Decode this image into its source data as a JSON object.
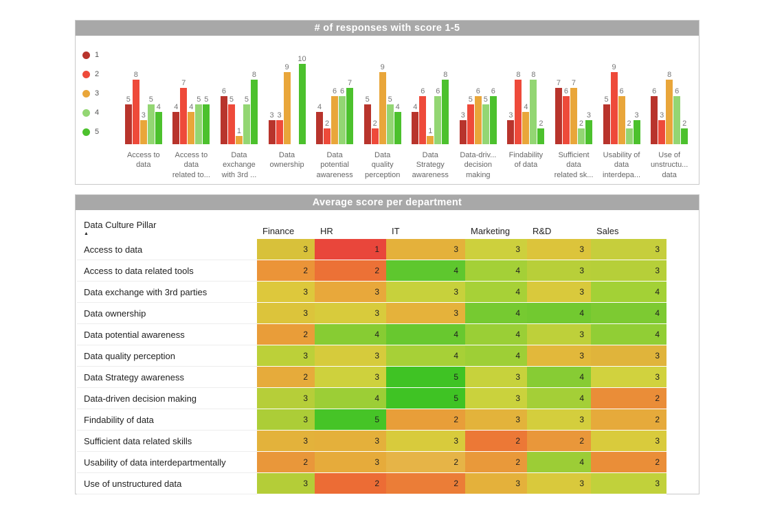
{
  "panels": {
    "heatmap_ui": {
      "sort_indicator": "▲"
    }
  },
  "theme": {
    "title_bar_bg": "#a8a8a8",
    "title_text": "#ffffff",
    "panel_border": "#c9c9c9"
  },
  "chart_data": [
    {
      "type": "bar",
      "title": "# of responses with score 1-5",
      "legend_position": "left",
      "data_labels": true,
      "ylim": [
        0,
        10
      ],
      "xlabel": "",
      "ylabel": "",
      "categories": [
        "Access to data",
        "Access to data related to...",
        "Data exchange with 3rd ...",
        "Data ownership",
        "Data potential awareness",
        "Data quality perception",
        "Data Strategy awareness",
        "Data-driv... decision making",
        "Findability of data",
        "Sufficient data related sk...",
        "Usability of data interdepa...",
        "Use of unstructu... data"
      ],
      "categories_display": [
        "Access to\ndata",
        "Access to\ndata\nrelated to...",
        "Data\nexchange\nwith 3rd ...",
        "Data\nownership",
        "Data\npotential\nawareness",
        "Data\nquality\nperception",
        "Data\nStrategy\nawareness",
        "Data-driv...\ndecision\nmaking",
        "Findability\nof data",
        "Sufficient\ndata\nrelated sk...",
        "Usability of\ndata\ninterdepa...",
        "Use of\nunstructu...\ndata"
      ],
      "series": [
        {
          "name": "1",
          "color": "#b8342c",
          "values": [
            5,
            4,
            6,
            3,
            4,
            5,
            4,
            3,
            3,
            7,
            5,
            6
          ]
        },
        {
          "name": "2",
          "color": "#ee4a3a",
          "values": [
            8,
            7,
            5,
            3,
            2,
            2,
            6,
            5,
            8,
            6,
            9,
            3
          ]
        },
        {
          "name": "3",
          "color": "#e9a63a",
          "values": [
            3,
            4,
            1,
            9,
            6,
            9,
            1,
            6,
            4,
            7,
            6,
            8
          ]
        },
        {
          "name": "4",
          "color": "#93d673",
          "values": [
            5,
            5,
            5,
            0,
            6,
            5,
            6,
            5,
            8,
            2,
            2,
            6
          ]
        },
        {
          "name": "5",
          "color": "#4cc12d",
          "values": [
            4,
            5,
            8,
            10,
            7,
            4,
            8,
            6,
            2,
            3,
            3,
            2
          ]
        }
      ]
    },
    {
      "type": "heatmap",
      "title": "Average score per department",
      "row_header": "Data Culture Pillar",
      "columns": [
        "Finance",
        "HR",
        "IT",
        "Marketing",
        "R&D",
        "Sales"
      ],
      "rows": [
        "Access to data",
        "Access to data related tools",
        "Data exchange with 3rd parties",
        "Data ownership",
        "Data potential awareness",
        "Data quality perception",
        "Data Strategy awareness",
        "Data-driven decision making",
        "Findability of data",
        "Sufficient data related skills",
        "Usability of data interdepartmentally",
        "Use of unstructured data"
      ],
      "values": [
        [
          3,
          1,
          3,
          3,
          3,
          3
        ],
        [
          2,
          2,
          4,
          4,
          3,
          3
        ],
        [
          3,
          3,
          3,
          4,
          3,
          4
        ],
        [
          3,
          3,
          3,
          4,
          4,
          4
        ],
        [
          2,
          4,
          4,
          4,
          3,
          4
        ],
        [
          3,
          3,
          4,
          4,
          3,
          3
        ],
        [
          2,
          3,
          5,
          3,
          4,
          3
        ],
        [
          3,
          4,
          5,
          3,
          4,
          2
        ],
        [
          3,
          5,
          2,
          3,
          3,
          2
        ],
        [
          3,
          3,
          3,
          2,
          2,
          3
        ],
        [
          2,
          3,
          2,
          2,
          4,
          2
        ],
        [
          3,
          2,
          2,
          3,
          3,
          3
        ]
      ],
      "cell_colors": [
        [
          "#d8c13a",
          "#e9463b",
          "#e4b13b",
          "#cdd03d",
          "#dcc43b",
          "#c6ce3c"
        ],
        [
          "#eb9438",
          "#ec7136",
          "#5ec72e",
          "#a4d037",
          "#b8cf39",
          "#b6cf39"
        ],
        [
          "#ddc83c",
          "#e8a83b",
          "#c7d13c",
          "#a7d137",
          "#d9c93c",
          "#a3d136"
        ],
        [
          "#dcc43b",
          "#d8cb3c",
          "#e5b23b",
          "#76ca31",
          "#72c930",
          "#7dca32"
        ],
        [
          "#e99d39",
          "#87cc33",
          "#68c82f",
          "#9acf36",
          "#bed03a",
          "#91ce35"
        ],
        [
          "#bcd039",
          "#d6cb3c",
          "#a7d037",
          "#9ecf36",
          "#e2b83b",
          "#e0b43b"
        ],
        [
          "#e6ab3b",
          "#ced13d",
          "#3fc324",
          "#c7d23c",
          "#87cc34",
          "#d1d23e"
        ],
        [
          "#b6ce39",
          "#9cce36",
          "#3fc324",
          "#cad23d",
          "#a4cf37",
          "#ea8d38"
        ],
        [
          "#accd37",
          "#46c427",
          "#e89e39",
          "#e3b33b",
          "#d4ce3d",
          "#e6aa3b"
        ],
        [
          "#e3b23b",
          "#e4b03b",
          "#d8cb3c",
          "#ec7836",
          "#e9973a",
          "#d9cb3c"
        ],
        [
          "#e9973a",
          "#e6ab3b",
          "#e6b447",
          "#e9993a",
          "#9ccd36",
          "#ea8e38"
        ],
        [
          "#b4cd38",
          "#ec6c35",
          "#eb7d37",
          "#e4b13b",
          "#d9c93c",
          "#c1d13b"
        ]
      ]
    }
  ]
}
